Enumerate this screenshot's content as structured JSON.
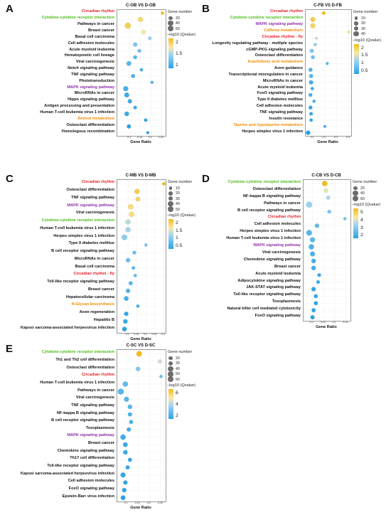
{
  "chart_data": [
    {
      "letter": "A",
      "type": "scatter",
      "title": "C-OB VS D-OB",
      "xlabel": "Gene Ratio",
      "xlim": [
        0.04,
        0.27
      ],
      "xticks": [
        "0.1",
        "0.15",
        "0.2",
        "0.25"
      ],
      "size_legend_title": "Gene number",
      "size_legend": [
        "20",
        "40",
        "60"
      ],
      "color_legend_title": "−log10 (Qvalue)",
      "color_ticks": [
        "2",
        "1.5",
        "1"
      ],
      "color_range": [
        0.6,
        2.2
      ],
      "terms": [
        {
          "label": "Circadian rhythm",
          "color": "#e8202a",
          "x": 0.255,
          "n": 10,
          "q": 2.2
        },
        {
          "label": "Cytokine-cytokine receptor interaction",
          "color": "#4cbb17",
          "x": 0.15,
          "n": 40,
          "q": 1.9
        },
        {
          "label": "Pathways in cancer",
          "color": "#111111",
          "x": 0.09,
          "n": 62,
          "q": 2.0
        },
        {
          "label": "Breast cancer",
          "color": "#111111",
          "x": 0.165,
          "n": 30,
          "q": 1.7
        },
        {
          "label": "Basal cell carcinoma",
          "color": "#111111",
          "x": 0.195,
          "n": 15,
          "q": 1.3
        },
        {
          "label": "Cell adhesion molecules",
          "color": "#111111",
          "x": 0.125,
          "n": 25,
          "q": 1.1
        },
        {
          "label": "Acute myeloid leukemia",
          "color": "#111111",
          "x": 0.145,
          "n": 15,
          "q": 1.0
        },
        {
          "label": "Hematopoietic cell lineage",
          "color": "#111111",
          "x": 0.125,
          "n": 18,
          "q": 0.9
        },
        {
          "label": "Viral carcinogenesis",
          "color": "#111111",
          "x": 0.095,
          "n": 35,
          "q": 0.9
        },
        {
          "label": "Notch signaling pathway",
          "color": "#111111",
          "x": 0.155,
          "n": 12,
          "q": 0.8
        },
        {
          "label": "TNF signaling pathway",
          "color": "#111111",
          "x": 0.115,
          "n": 20,
          "q": 0.8
        },
        {
          "label": "Phototransduction",
          "color": "#111111",
          "x": 0.205,
          "n": 8,
          "q": 0.8
        },
        {
          "label": "MAPK signaling pathway",
          "color": "#8e2fa8",
          "x": 0.08,
          "n": 40,
          "q": 0.8
        },
        {
          "label": "MicroRNAs in cancer",
          "color": "#111111",
          "x": 0.085,
          "n": 35,
          "q": 0.7
        },
        {
          "label": "Hippo signaling pathway",
          "color": "#111111",
          "x": 0.1,
          "n": 25,
          "q": 0.7
        },
        {
          "label": "Antigen processing and presentation",
          "color": "#111111",
          "x": 0.125,
          "n": 14,
          "q": 0.7
        },
        {
          "label": "Human T-cell leukemia virus 1 infection",
          "color": "#111111",
          "x": 0.085,
          "n": 30,
          "q": 0.7
        },
        {
          "label": "Retinol metabolism",
          "color": "#f08c00",
          "x": 0.175,
          "n": 12,
          "q": 0.6
        },
        {
          "label": "Osteoclast differentiation",
          "color": "#111111",
          "x": 0.095,
          "n": 22,
          "q": 0.6
        },
        {
          "label": "Homologous recombination",
          "color": "#111111",
          "x": 0.185,
          "n": 8,
          "q": 0.6
        }
      ]
    },
    {
      "letter": "B",
      "type": "scatter",
      "title": "C-FB VS D-FB",
      "xlabel": "Gene Ratio",
      "xlim": [
        0.04,
        0.42
      ],
      "xticks": [
        "0.1",
        "0.2",
        "0.3",
        "0.4"
      ],
      "size_legend_title": "Gene number",
      "size_legend": [
        "10",
        "20",
        "30",
        "40"
      ],
      "color_legend_title": "−log10 (Qvalue)",
      "color_ticks": [
        "2",
        "1.5",
        "1",
        "0.5"
      ],
      "color_range": [
        0.3,
        2.2
      ],
      "terms": [
        {
          "label": "Circadian rhythm",
          "color": "#e8202a",
          "x": 0.19,
          "n": 12,
          "q": 2.2
        },
        {
          "label": "Cytokine-cytokine receptor interaction",
          "color": "#4cbb17",
          "x": 0.1,
          "n": 35,
          "q": 2.0
        },
        {
          "label": "MAPK signaling pathway",
          "color": "#8e2fa8",
          "x": 0.1,
          "n": 40,
          "q": 1.9
        },
        {
          "label": "Caffeine metabolism",
          "color": "#f08c00",
          "x": 0.4,
          "n": 4,
          "q": 1.7
        },
        {
          "label": "Circadian rhythm - fly",
          "color": "#e8202a",
          "x": 0.13,
          "n": 8,
          "q": 1.4
        },
        {
          "label": "Longevity regulating pathway - multiple species",
          "color": "#111111",
          "x": 0.12,
          "n": 10,
          "q": 1.0
        },
        {
          "label": "cGMP-PKG signaling pathway",
          "color": "#111111",
          "x": 0.09,
          "n": 22,
          "q": 0.9
        },
        {
          "label": "Osteoclast differentiation",
          "color": "#111111",
          "x": 0.1,
          "n": 18,
          "q": 0.8
        },
        {
          "label": "Arachidonic acid metabolism",
          "color": "#f08c00",
          "x": 0.22,
          "n": 8,
          "q": 0.7
        },
        {
          "label": "Axon guidance",
          "color": "#111111",
          "x": 0.08,
          "n": 20,
          "q": 0.6
        },
        {
          "label": "Transcriptional misregulation in cancer",
          "color": "#111111",
          "x": 0.085,
          "n": 20,
          "q": 0.6
        },
        {
          "label": "MicroRNAs in cancer",
          "color": "#111111",
          "x": 0.085,
          "n": 24,
          "q": 0.5
        },
        {
          "label": "Acute myeloid leukemia",
          "color": "#111111",
          "x": 0.095,
          "n": 12,
          "q": 0.5
        },
        {
          "label": "FoxO signaling pathway",
          "color": "#111111",
          "x": 0.08,
          "n": 16,
          "q": 0.5
        },
        {
          "label": "Type II diabetes mellitus",
          "color": "#111111",
          "x": 0.11,
          "n": 10,
          "q": 0.5
        },
        {
          "label": "Cell adhesion molecules",
          "color": "#111111",
          "x": 0.08,
          "n": 18,
          "q": 0.4
        },
        {
          "label": "TNF signaling pathway",
          "color": "#111111",
          "x": 0.085,
          "n": 14,
          "q": 0.4
        },
        {
          "label": "Insulin resistance",
          "color": "#111111",
          "x": 0.085,
          "n": 12,
          "q": 0.4
        },
        {
          "label": "Taurine and hypotaurine metabolism",
          "color": "#f08c00",
          "x": 0.2,
          "n": 5,
          "q": 0.4
        },
        {
          "label": "Herpes simplex virus 1 infection",
          "color": "#111111",
          "x": 0.06,
          "n": 28,
          "q": 0.3
        }
      ]
    },
    {
      "letter": "C",
      "type": "scatter",
      "title": "C-MB VS D-MB",
      "xlabel": "Gene Ratio",
      "xlim": [
        0.04,
        0.31
      ],
      "xticks": [
        "0.1",
        "0.15",
        "0.2",
        "0.25",
        "0.3"
      ],
      "size_legend_title": "Gene number",
      "size_legend": [
        "10",
        "20",
        "30",
        "40",
        "50"
      ],
      "color_legend_title": "−log10 (Qvalue)",
      "color_ticks": [
        "2",
        "1.5",
        "1",
        "0.5"
      ],
      "color_range": [
        0.3,
        2.2
      ],
      "terms": [
        {
          "label": "Circadian rhythm",
          "color": "#e8202a",
          "x": 0.3,
          "n": 12,
          "q": 2.2
        },
        {
          "label": "Osteoclast differentiation",
          "color": "#111111",
          "x": 0.15,
          "n": 38,
          "q": 2.0
        },
        {
          "label": "TNF signaling pathway",
          "color": "#111111",
          "x": 0.155,
          "n": 32,
          "q": 1.9
        },
        {
          "label": "MAPK signaling pathway",
          "color": "#8e2fa8",
          "x": 0.115,
          "n": 48,
          "q": 1.8
        },
        {
          "label": "Viral carcinogenesis",
          "color": "#111111",
          "x": 0.12,
          "n": 45,
          "q": 1.8
        },
        {
          "label": "Cytokine-cytokine receptor interaction",
          "color": "#4cbb17",
          "x": 0.1,
          "n": 42,
          "q": 1.3
        },
        {
          "label": "Human T-cell leukemia virus 1 infection",
          "color": "#111111",
          "x": 0.1,
          "n": 45,
          "q": 1.2
        },
        {
          "label": "Herpes simplex virus 1 infection",
          "color": "#111111",
          "x": 0.08,
          "n": 50,
          "q": 1.0
        },
        {
          "label": "Type II diabetes mellitus",
          "color": "#111111",
          "x": 0.2,
          "n": 10,
          "q": 0.9
        },
        {
          "label": "B cell receptor signaling pathway",
          "color": "#111111",
          "x": 0.135,
          "n": 18,
          "q": 0.8
        },
        {
          "label": "MicroRNAs in cancer",
          "color": "#111111",
          "x": 0.1,
          "n": 28,
          "q": 0.8
        },
        {
          "label": "Basal cell carcinoma",
          "color": "#111111",
          "x": 0.13,
          "n": 14,
          "q": 0.7
        },
        {
          "label": "Circadian rhythm - fly",
          "color": "#e8202a",
          "x": 0.14,
          "n": 10,
          "q": 0.7
        },
        {
          "label": "Toll-like receptor signaling pathway",
          "color": "#111111",
          "x": 0.115,
          "n": 20,
          "q": 0.6
        },
        {
          "label": "Breast cancer",
          "color": "#111111",
          "x": 0.1,
          "n": 26,
          "q": 0.6
        },
        {
          "label": "Hepatocellular carcinoma",
          "color": "#111111",
          "x": 0.09,
          "n": 30,
          "q": 0.5
        },
        {
          "label": "N-Glycan biosynthesis",
          "color": "#f08c00",
          "x": 0.155,
          "n": 10,
          "q": 0.5
        },
        {
          "label": "Axon regeneration",
          "color": "#111111",
          "x": 0.09,
          "n": 26,
          "q": 0.4
        },
        {
          "label": "Hepatitis B",
          "color": "#111111",
          "x": 0.085,
          "n": 28,
          "q": 0.4
        },
        {
          "label": "Kaposi sarcoma-associated herpesvirus infection",
          "color": "#111111",
          "x": 0.08,
          "n": 30,
          "q": 0.3
        }
      ]
    },
    {
      "letter": "D",
      "type": "scatter",
      "title": "C-CB VS D-CB",
      "xlabel": "Gene Ratio",
      "xlim": [
        0.06,
        0.27
      ],
      "xticks": [
        "0.1",
        "0.15",
        "0.2",
        "0.25"
      ],
      "size_legend_title": "Gene number",
      "size_legend": [
        "20",
        "40",
        "60"
      ],
      "color_legend_title": "−log10 (Qvalue)",
      "color_ticks": [
        "5",
        "4",
        "3",
        "2"
      ],
      "color_range": [
        1.2,
        5.5
      ],
      "terms": [
        {
          "label": "Cytokine-cytokine receptor interaction",
          "color": "#4cbb17",
          "x": 0.155,
          "n": 45,
          "q": 5.5
        },
        {
          "label": "Osteoclast differentiation",
          "color": "#111111",
          "x": 0.16,
          "n": 30,
          "q": 4.0
        },
        {
          "label": "NF-kappa B signaling pathway",
          "color": "#111111",
          "x": 0.17,
          "n": 22,
          "q": 3.3
        },
        {
          "label": "Pathways in cancer",
          "color": "#111111",
          "x": 0.085,
          "n": 60,
          "q": 3.0
        },
        {
          "label": "B cell receptor signaling pathway",
          "color": "#111111",
          "x": 0.175,
          "n": 18,
          "q": 2.6
        },
        {
          "label": "Circadian rhythm",
          "color": "#e8202a",
          "x": 0.245,
          "n": 10,
          "q": 2.4
        },
        {
          "label": "Cell adhesion molecules",
          "color": "#111111",
          "x": 0.12,
          "n": 28,
          "q": 2.2
        },
        {
          "label": "Herpes simplex virus 1 infection",
          "color": "#111111",
          "x": 0.085,
          "n": 55,
          "q": 2.0
        },
        {
          "label": "Human T-cell leukemia virus 1 infection",
          "color": "#111111",
          "x": 0.1,
          "n": 40,
          "q": 2.0
        },
        {
          "label": "MAPK signaling pathway",
          "color": "#8e2fa8",
          "x": 0.095,
          "n": 45,
          "q": 1.8
        },
        {
          "label": "Viral carcinogenesis",
          "color": "#111111",
          "x": 0.1,
          "n": 38,
          "q": 1.8
        },
        {
          "label": "Chemokine signaling pathway",
          "color": "#111111",
          "x": 0.105,
          "n": 30,
          "q": 1.7
        },
        {
          "label": "Breast cancer",
          "color": "#111111",
          "x": 0.105,
          "n": 28,
          "q": 1.6
        },
        {
          "label": "Acute myeloid leukemia",
          "color": "#111111",
          "x": 0.13,
          "n": 16,
          "q": 1.5
        },
        {
          "label": "Adipocytokine signaling pathway",
          "color": "#111111",
          "x": 0.125,
          "n": 15,
          "q": 1.5
        },
        {
          "label": "JAK-STAT signaling pathway",
          "color": "#111111",
          "x": 0.105,
          "n": 28,
          "q": 1.4
        },
        {
          "label": "Toll-like receptor signaling pathway",
          "color": "#111111",
          "x": 0.115,
          "n": 20,
          "q": 1.4
        },
        {
          "label": "Toxoplasmosis",
          "color": "#111111",
          "x": 0.115,
          "n": 22,
          "q": 1.3
        },
        {
          "label": "Natural killer cell mediated cytotoxicity",
          "color": "#111111",
          "x": 0.105,
          "n": 22,
          "q": 1.3
        },
        {
          "label": "FoxO signaling pathway",
          "color": "#111111",
          "x": 0.1,
          "n": 24,
          "q": 1.2
        }
      ]
    },
    {
      "letter": "E",
      "type": "scatter",
      "title": "C-SC VS D-SC",
      "xlabel": "Gene Ratio",
      "xlim": [
        0.06,
        0.27
      ],
      "xticks": [
        "0.1",
        "0.15",
        "0.2",
        "0.25"
      ],
      "size_legend_title": "Gene number",
      "size_legend": [
        "20",
        "30",
        "40",
        "50",
        "60"
      ],
      "color_legend_title": "−log10 (Qvalue)",
      "color_ticks": [
        "6",
        "4",
        "2"
      ],
      "color_range": [
        1.0,
        7.0
      ],
      "terms": [
        {
          "label": "Cytokine-cytokine receptor interaction",
          "color": "#4cbb17",
          "x": 0.155,
          "n": 50,
          "q": 7.0
        },
        {
          "label": "Th1 and Th2 cell differentiation",
          "color": "#111111",
          "x": 0.245,
          "n": 22,
          "q": 4.5
        },
        {
          "label": "Osteoclast differentiation",
          "color": "#111111",
          "x": 0.15,
          "n": 28,
          "q": 3.0
        },
        {
          "label": "Circadian rhythm",
          "color": "#e8202a",
          "x": 0.25,
          "n": 10,
          "q": 2.6
        },
        {
          "label": "Human T-cell leukemia virus 1 infection",
          "color": "#111111",
          "x": 0.095,
          "n": 45,
          "q": 2.3
        },
        {
          "label": "Pathways in cancer",
          "color": "#111111",
          "x": 0.075,
          "n": 62,
          "q": 2.1
        },
        {
          "label": "Viral carcinogenesis",
          "color": "#111111",
          "x": 0.1,
          "n": 38,
          "q": 2.0
        },
        {
          "label": "TNF signaling pathway",
          "color": "#111111",
          "x": 0.115,
          "n": 28,
          "q": 2.0
        },
        {
          "label": "NF-kappa B signaling pathway",
          "color": "#111111",
          "x": 0.115,
          "n": 24,
          "q": 1.8
        },
        {
          "label": "B cell receptor signaling pathway",
          "color": "#111111",
          "x": 0.12,
          "n": 20,
          "q": 1.7
        },
        {
          "label": "Toxoplasmosis",
          "color": "#111111",
          "x": 0.11,
          "n": 24,
          "q": 1.6
        },
        {
          "label": "MAPK signaling pathway",
          "color": "#8e2fa8",
          "x": 0.085,
          "n": 45,
          "q": 1.5
        },
        {
          "label": "Breast cancer",
          "color": "#111111",
          "x": 0.095,
          "n": 32,
          "q": 1.4
        },
        {
          "label": "Chemokine signaling pathway",
          "color": "#111111",
          "x": 0.095,
          "n": 30,
          "q": 1.4
        },
        {
          "label": "Th17 cell differentiation",
          "color": "#111111",
          "x": 0.115,
          "n": 22,
          "q": 1.3
        },
        {
          "label": "Toll-like receptor signaling pathway",
          "color": "#111111",
          "x": 0.105,
          "n": 22,
          "q": 1.3
        },
        {
          "label": "Kaposi sarcoma-associated herpesvirus infection",
          "color": "#111111",
          "x": 0.085,
          "n": 38,
          "q": 1.2
        },
        {
          "label": "Cell adhesion molecules",
          "color": "#111111",
          "x": 0.095,
          "n": 26,
          "q": 1.1
        },
        {
          "label": "FoxO signaling pathway",
          "color": "#111111",
          "x": 0.09,
          "n": 26,
          "q": 1.1
        },
        {
          "label": "Epstein-Barr virus infection",
          "color": "#111111",
          "x": 0.085,
          "n": 32,
          "q": 1.0
        }
      ]
    }
  ]
}
